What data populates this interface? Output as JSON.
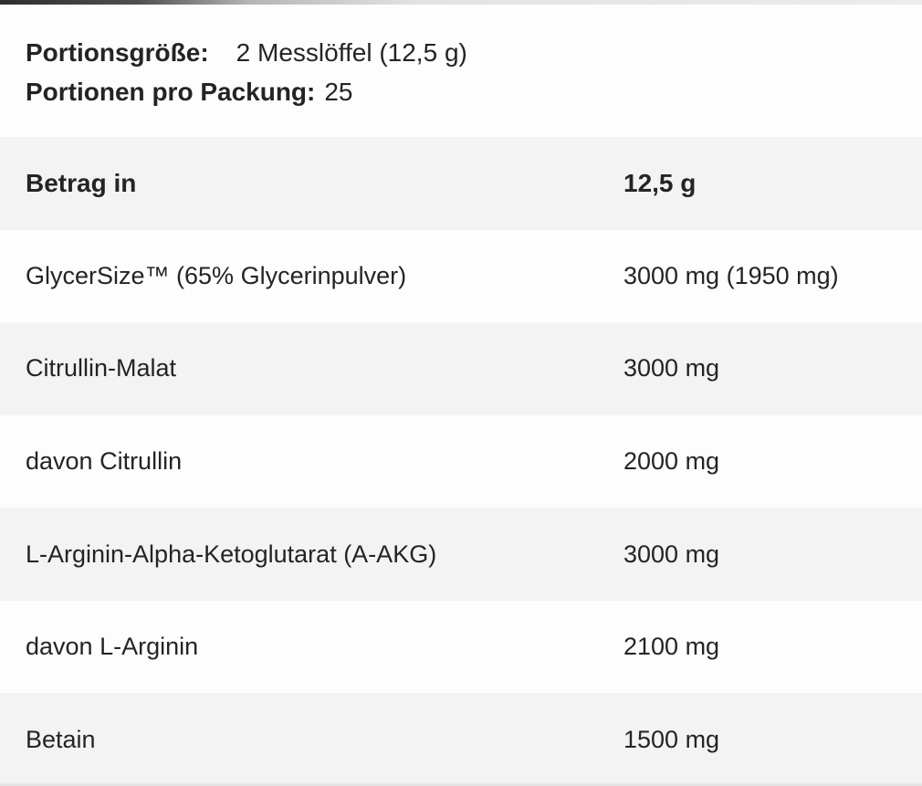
{
  "colors": {
    "background": "#fdfdfd",
    "row_stripe": "#f3f3f3",
    "text": "#242424",
    "top_edge_dark": "#2e2e2e",
    "bottom_edge": "#e2e2e2"
  },
  "intro": {
    "serving_size_label": "Portionsgröße:",
    "serving_size_value": "2 Messlöffel (12,5 g)",
    "servings_per_pack_label": "Portionen pro Packung:",
    "servings_per_pack_value": "25"
  },
  "table": {
    "rows": [
      {
        "label": "Betrag in",
        "value": "12,5 g",
        "is_header": true
      },
      {
        "label": "GlycerSize™ (65% Glycerinpulver)",
        "value": "3000 mg (1950 mg)",
        "is_header": false
      },
      {
        "label": "Citrullin-Malat",
        "value": "3000 mg",
        "is_header": false
      },
      {
        "label": "davon Citrullin",
        "value": "2000 mg",
        "is_header": false
      },
      {
        "label": "L-Arginin-Alpha-Ketoglutarat (A-AKG)",
        "value": "3000 mg",
        "is_header": false
      },
      {
        "label": "davon L-Arginin",
        "value": "2100 mg",
        "is_header": false
      },
      {
        "label": "Betain",
        "value": "1500 mg",
        "is_header": false
      }
    ]
  }
}
